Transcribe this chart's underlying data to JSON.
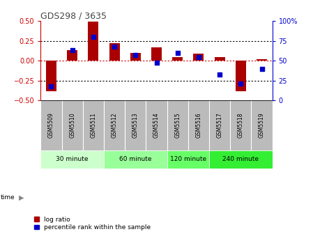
{
  "title": "GDS298 / 3635",
  "samples": [
    "GSM5509",
    "GSM5510",
    "GSM5511",
    "GSM5512",
    "GSM5513",
    "GSM5514",
    "GSM5515",
    "GSM5516",
    "GSM5517",
    "GSM5518",
    "GSM5519"
  ],
  "log_ratio": [
    -0.38,
    0.13,
    0.49,
    0.22,
    0.1,
    0.17,
    0.05,
    0.09,
    0.05,
    -0.38,
    0.02
  ],
  "percentile": [
    18,
    63,
    80,
    68,
    57,
    48,
    60,
    55,
    33,
    21,
    40
  ],
  "ylim": [
    -0.5,
    0.5
  ],
  "yticks_left": [
    -0.5,
    -0.25,
    0,
    0.25,
    0.5
  ],
  "yticks_right": [
    0,
    25,
    50,
    75,
    100
  ],
  "hlines": [
    -0.25,
    0,
    0.25
  ],
  "groups": [
    {
      "label": "30 minute",
      "start": 0,
      "end": 3,
      "color": "#ccffcc"
    },
    {
      "label": "60 minute",
      "start": 3,
      "end": 6,
      "color": "#99ff99"
    },
    {
      "label": "120 minute",
      "start": 6,
      "end": 8,
      "color": "#66ff66"
    },
    {
      "label": "240 minute",
      "start": 8,
      "end": 11,
      "color": "#33ee33"
    }
  ],
  "bar_color": "#aa0000",
  "dot_color": "#0000cc",
  "bar_width": 0.5,
  "dot_size": 25,
  "background_color": "#ffffff",
  "plot_bg_color": "#ffffff",
  "axis_label_color_left": "#cc0000",
  "axis_label_color_right": "#0000cc",
  "title_color": "#444444",
  "zero_line_color": "#cc0000",
  "dotted_line_color": "#000000",
  "sample_bg_color": "#bbbbbb",
  "time_label": "time",
  "legend_log_ratio": "log ratio",
  "legend_percentile": "percentile rank within the sample"
}
